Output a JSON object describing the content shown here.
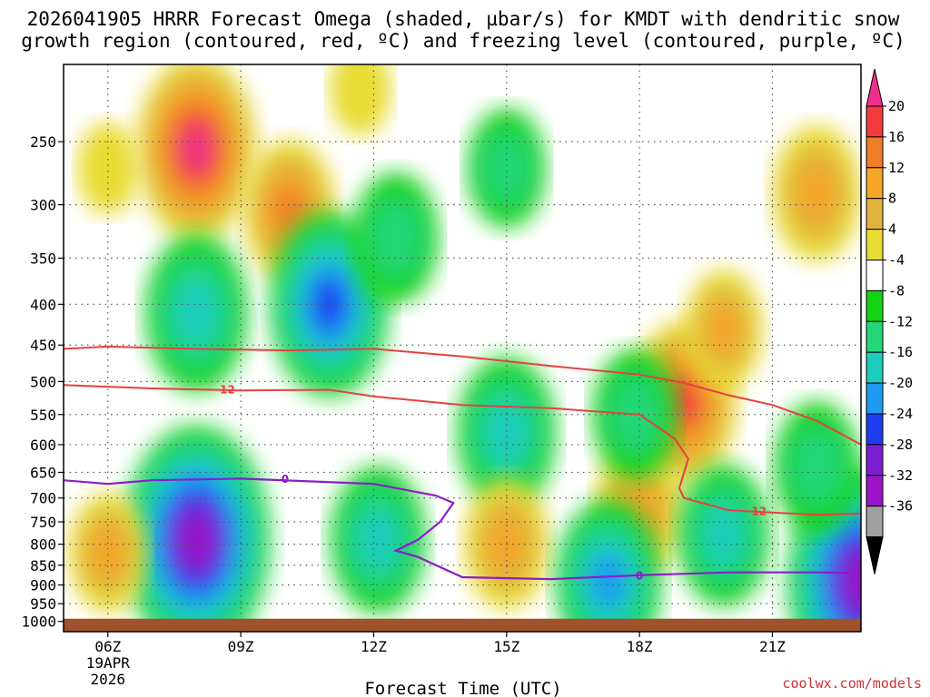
{
  "chart_data": {
    "type": "heatmap",
    "title_line1": "2026041905 HRRR Forecast Omega (shaded, µbar/s) for KMDT with dendritic snow",
    "title_line2": "growth region (contoured, red, ºC) and freezing level (contoured, purple, ºC)",
    "xlabel": "Forecast Time (UTC)",
    "x_ticks": [
      {
        "label": "06Z",
        "hour": 6,
        "date_line1": "19APR",
        "date_line2": "2026"
      },
      {
        "label": "09Z",
        "hour": 9
      },
      {
        "label": "12Z",
        "hour": 12
      },
      {
        "label": "15Z",
        "hour": 15
      },
      {
        "label": "18Z",
        "hour": 18
      },
      {
        "label": "21Z",
        "hour": 21
      }
    ],
    "xlim_hours": [
      5.0,
      23.0
    ],
    "y_ticks": [
      "250",
      "300",
      "350",
      "400",
      "450",
      "500",
      "550",
      "600",
      "650",
      "700",
      "750",
      "800",
      "850",
      "900",
      "950",
      "1000"
    ],
    "ylim_mb": [
      200,
      1030
    ],
    "y_scale": "log-pressure",
    "colorbar": {
      "levels": [
        "20",
        "16",
        "12",
        "8",
        "4",
        "-4",
        "-8",
        "-12",
        "-16",
        "-20",
        "-24",
        "-28",
        "-32",
        "-36"
      ],
      "colors": [
        "#f02d8c",
        "#f23c3c",
        "#f07d28",
        "#f5a528",
        "#e0b43c",
        "#e8dc32",
        "#ffffff",
        "#13d213",
        "#23d778",
        "#1ecdbe",
        "#1e9bf0",
        "#1e3cf0",
        "#7d1ed2",
        "#9b14c8",
        "#a0a0a0",
        "#000000"
      ]
    },
    "omega_blobs": [
      {
        "t": 8.0,
        "p": 255,
        "value": 22
      },
      {
        "t": 10.1,
        "p": 305,
        "value": 14
      },
      {
        "t": 6.0,
        "p": 270,
        "value": 5
      },
      {
        "t": 11.7,
        "p": 215,
        "value": 5
      },
      {
        "t": 15.0,
        "p": 270,
        "value": -10
      },
      {
        "t": 8.0,
        "p": 410,
        "value": -17
      },
      {
        "t": 11.0,
        "p": 400,
        "value": -22
      },
      {
        "t": 12.5,
        "p": 330,
        "value": -12
      },
      {
        "t": 15.0,
        "p": 580,
        "value": -16
      },
      {
        "t": 8.0,
        "p": 790,
        "value": -30
      },
      {
        "t": 12.1,
        "p": 790,
        "value": -15
      },
      {
        "t": 15.0,
        "p": 800,
        "value": 12
      },
      {
        "t": 18.0,
        "p": 720,
        "value": 13
      },
      {
        "t": 19.0,
        "p": 530,
        "value": 18
      },
      {
        "t": 19.9,
        "p": 430,
        "value": 10
      },
      {
        "t": 17.9,
        "p": 550,
        "value": -12
      },
      {
        "t": 17.3,
        "p": 890,
        "value": -18
      },
      {
        "t": 19.9,
        "p": 780,
        "value": -14
      },
      {
        "t": 23.0,
        "p": 890,
        "value": -30
      },
      {
        "t": 22.0,
        "p": 640,
        "value": -12
      },
      {
        "t": 22.0,
        "p": 290,
        "value": 13
      },
      {
        "t": 6.0,
        "p": 820,
        "value": 10
      }
    ],
    "isotherm_-12C": {
      "color": "#e84040",
      "label": "12",
      "upper": [
        [
          5.0,
          455
        ],
        [
          6.0,
          452
        ],
        [
          8.0,
          455
        ],
        [
          10.0,
          457
        ],
        [
          12.0,
          455
        ],
        [
          14.0,
          465
        ],
        [
          16.0,
          478
        ],
        [
          18.0,
          490
        ],
        [
          19.0,
          502
        ],
        [
          20.0,
          520
        ],
        [
          21.0,
          535
        ],
        [
          22.0,
          560
        ],
        [
          23.0,
          600
        ]
      ],
      "lower": [
        [
          5.0,
          505
        ],
        [
          7.0,
          510
        ],
        [
          9.0,
          513
        ],
        [
          11.0,
          512
        ],
        [
          12.0,
          522
        ],
        [
          14.0,
          535
        ],
        [
          16.0,
          540
        ],
        [
          18.0,
          550
        ],
        [
          18.8,
          590
        ],
        [
          19.1,
          625
        ],
        [
          18.9,
          680
        ],
        [
          19.0,
          700
        ],
        [
          20.0,
          725
        ],
        [
          21.0,
          730
        ],
        [
          22.0,
          735
        ],
        [
          23.0,
          732
        ]
      ]
    },
    "freezing_level_0C": {
      "color": "#8a1ec8",
      "label": "0",
      "points": [
        [
          5.0,
          665
        ],
        [
          6.0,
          672
        ],
        [
          7.0,
          665
        ],
        [
          9.0,
          662
        ],
        [
          12.0,
          672
        ],
        [
          13.4,
          695
        ],
        [
          13.8,
          710
        ],
        [
          13.5,
          750
        ],
        [
          13.0,
          790
        ],
        [
          12.5,
          815
        ],
        [
          13.0,
          830
        ],
        [
          14.0,
          880
        ],
        [
          16.0,
          885
        ],
        [
          18.0,
          875
        ],
        [
          20.0,
          868
        ],
        [
          22.0,
          868
        ],
        [
          23.0,
          870
        ]
      ]
    },
    "ground": {
      "p_top": 1000,
      "color": "#a0522d"
    }
  },
  "credit": "coolwx.com/models"
}
